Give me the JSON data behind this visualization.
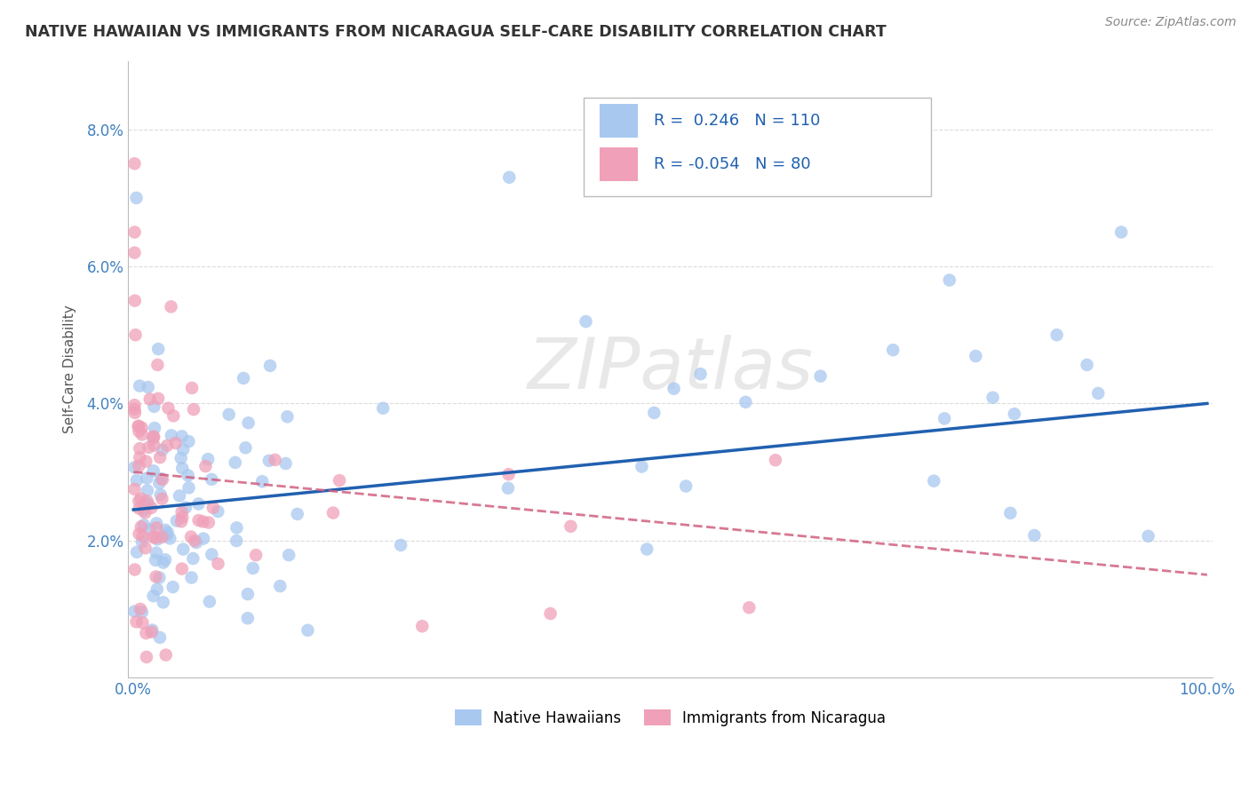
{
  "title": "NATIVE HAWAIIAN VS IMMIGRANTS FROM NICARAGUA SELF-CARE DISABILITY CORRELATION CHART",
  "source": "Source: ZipAtlas.com",
  "ylabel": "Self-Care Disability",
  "blue_color": "#A8C8F0",
  "pink_color": "#F0A0B8",
  "blue_line_color": "#2060B0",
  "pink_line_color": "#D06080",
  "grid_color": "#CCCCCC",
  "background_color": "#FFFFFF",
  "legend_R_blue": "0.246",
  "legend_N_blue": "110",
  "legend_R_pink": "-0.054",
  "legend_N_pink": "80",
  "legend_label_blue": "Native Hawaiians",
  "legend_label_pink": "Immigrants from Nicaragua",
  "watermark": "ZIPatlas",
  "tick_color": "#4080C0",
  "title_color": "#333333",
  "source_color": "#888888"
}
